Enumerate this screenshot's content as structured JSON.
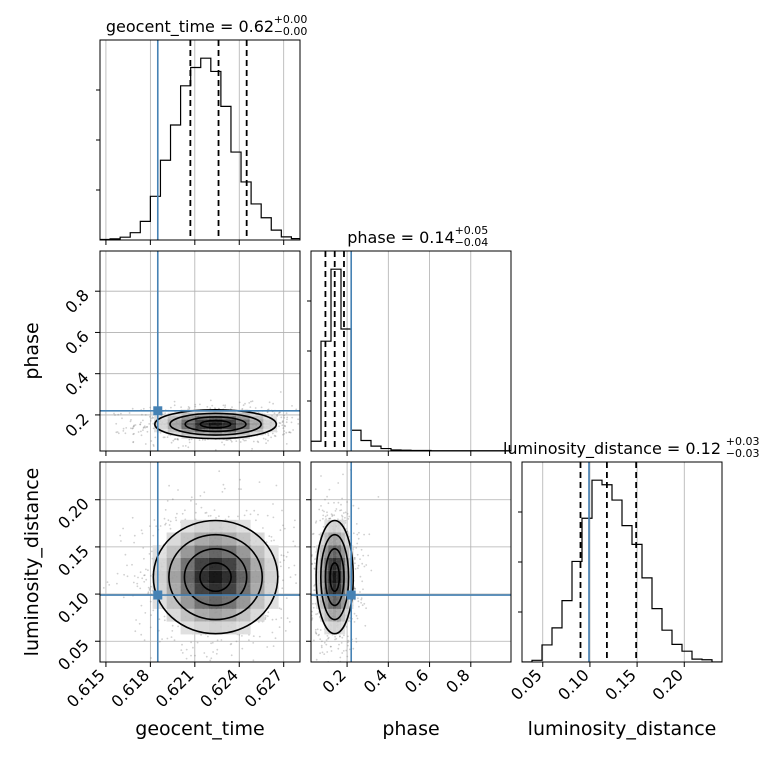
{
  "chart_data": {
    "type": "corner",
    "parameters": [
      "geocent_time",
      "phase",
      "luminosity_distance"
    ],
    "truth_color": "#4682b4",
    "truths": {
      "geocent_time": 0.6185,
      "phase": 0.22,
      "luminosity_distance": 0.099
    },
    "ranges": {
      "geocent_time": [
        0.6146,
        0.6281
      ],
      "phase": [
        0.025,
        0.995
      ],
      "luminosity_distance": [
        0.028,
        0.24
      ]
    },
    "ticks": {
      "geocent_time": {
        "values": [
          0.615,
          0.618,
          0.621,
          0.624,
          0.627
        ],
        "labels": [
          "0.615",
          "0.618",
          "0.621",
          "0.624",
          "0.627"
        ]
      },
      "phase": {
        "values": [
          0.2,
          0.4,
          0.6,
          0.8
        ],
        "labels": [
          "0.2",
          "0.4",
          "0.6",
          "0.8"
        ]
      },
      "luminosity_distance": {
        "values": [
          0.05,
          0.1,
          0.15,
          0.2
        ],
        "labels": [
          "0.05",
          "0.10",
          "0.15",
          "0.20"
        ]
      }
    },
    "axis_labels": {
      "geocent_time": "geocent_time",
      "phase": "phase",
      "luminosity_distance": "luminosity_distance"
    },
    "titles": [
      {
        "param": "geocent_time",
        "text": "geocent_time = 0.62",
        "sup": "+0.00",
        "sub": "−0.00"
      },
      {
        "param": "phase",
        "text": "phase = 0.14",
        "sup": "+0.05",
        "sub": "−0.04"
      },
      {
        "param": "luminosity_distance",
        "text": "luminosity_distance = 0.12",
        "sup": "+0.03",
        "sub": "−0.03"
      }
    ],
    "quantiles": {
      "geocent_time": [
        0.6207,
        0.6226,
        0.6245
      ],
      "phase": [
        0.095,
        0.14,
        0.185
      ],
      "luminosity_distance": [
        0.09,
        0.118,
        0.149
      ]
    },
    "histograms": {
      "geocent_time": {
        "edges": [
          0.6146,
          0.61528,
          0.61596,
          0.61664,
          0.61732,
          0.618,
          0.61868,
          0.61936,
          0.62004,
          0.62072,
          0.6214,
          0.62208,
          0.62276,
          0.62344,
          0.62412,
          0.6248,
          0.62548,
          0.62616,
          0.62684,
          0.62752,
          0.6281
        ],
        "counts": [
          2,
          4,
          10,
          26,
          66,
          155,
          283,
          408,
          547,
          612,
          645,
          598,
          474,
          312,
          206,
          128,
          79,
          35,
          11,
          5
        ]
      },
      "phase": {
        "edges": [
          0.025,
          0.0735,
          0.122,
          0.1705,
          0.219,
          0.2675,
          0.316,
          0.3645,
          0.413,
          0.4615,
          0.51,
          0.5585,
          0.607,
          0.6555,
          0.704,
          0.7525,
          0.801,
          0.8495,
          0.898,
          0.9465,
          0.995
        ],
        "counts": [
          40,
          450,
          745,
          500,
          85,
          43,
          20,
          10,
          4,
          3,
          2,
          2,
          1,
          1,
          1,
          1,
          1,
          1,
          1,
          1
        ]
      },
      "luminosity_distance": {
        "edges": [
          0.028,
          0.0386,
          0.0492,
          0.0598,
          0.0704,
          0.081,
          0.0916,
          0.1022,
          0.1128,
          0.1234,
          0.134,
          0.1446,
          0.1552,
          0.1658,
          0.1764,
          0.187,
          0.1976,
          0.2082,
          0.2188,
          0.2294,
          0.24
        ],
        "counts": [
          0,
          3,
          30,
          60,
          108,
          177,
          253,
          320,
          312,
          285,
          240,
          207,
          148,
          94,
          56,
          31,
          19,
          5,
          4,
          0
        ]
      }
    },
    "blobs": {
      "phase_vs_geocent_time": {
        "cx": 0.6224,
        "cy": 0.155,
        "sx": 0.00205,
        "sy": 0.035
      },
      "luminosity_distance_vs_geocent_time": {
        "cx": 0.6224,
        "cy": 0.118,
        "sx": 0.0021,
        "sy": 0.03
      },
      "luminosity_distance_vs_phase": {
        "cx": 0.14,
        "cy": 0.118,
        "sx": 0.045,
        "sy": 0.03
      }
    }
  }
}
